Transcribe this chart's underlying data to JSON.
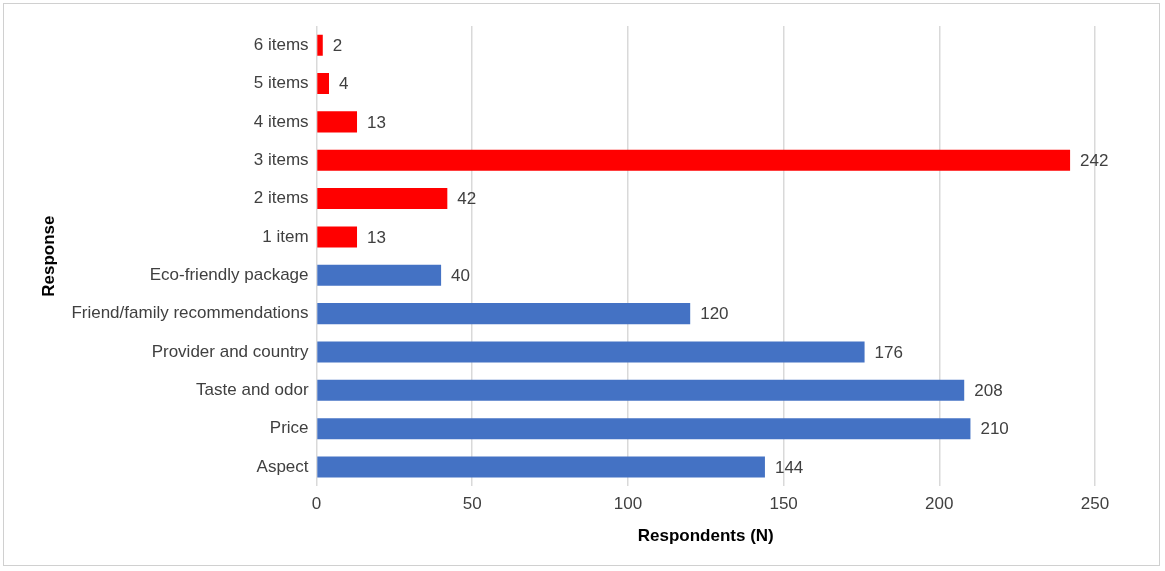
{
  "chart_data": {
    "type": "bar",
    "orientation": "horizontal",
    "categories": [
      "6 items",
      "5 items",
      "4 items",
      "3 items",
      "2 items",
      "1 item",
      "Eco-friendly package",
      "Friend/family recommendations",
      "Provider and country",
      "Taste and odor",
      "Price",
      "Aspect"
    ],
    "values": [
      2,
      4,
      13,
      242,
      42,
      13,
      40,
      120,
      176,
      208,
      210,
      144
    ],
    "colors": [
      "#ff0000",
      "#ff0000",
      "#ff0000",
      "#ff0000",
      "#ff0000",
      "#ff0000",
      "#4472c4",
      "#4472c4",
      "#4472c4",
      "#4472c4",
      "#4472c4",
      "#4472c4"
    ],
    "xlabel": "Respondents (N)",
    "ylabel": "Response",
    "xlim": [
      0,
      250
    ],
    "xticks": [
      0,
      50,
      100,
      150,
      200,
      250
    ],
    "grid": "x",
    "data_labels": true
  }
}
